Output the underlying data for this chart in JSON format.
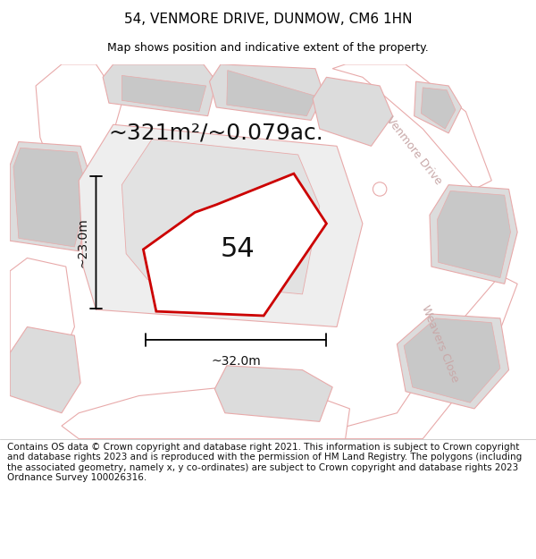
{
  "title": "54, VENMORE DRIVE, DUNMOW, CM6 1HN",
  "subtitle": "Map shows position and indicative extent of the property.",
  "area_label": "~321m²/~0.079ac.",
  "plot_number": "54",
  "dim_width": "~32.0m",
  "dim_height": "~23.0m",
  "footer": "Contains OS data © Crown copyright and database right 2021. This information is subject to Crown copyright and database rights 2023 and is reproduced with the permission of HM Land Registry. The polygons (including the associated geometry, namely x, y co-ordinates) are subject to Crown copyright and database rights 2023 Ordnance Survey 100026316.",
  "map_bg": "#ffffff",
  "plot_fill": "#ffffff",
  "plot_outline": "#cc0000",
  "road_fill": "#ffffff",
  "road_stroke": "#e8aaaa",
  "building_fill": "#dcdcdc",
  "building_stroke": "#e8aaaa",
  "title_fontsize": 11,
  "subtitle_fontsize": 9,
  "footer_fontsize": 7.5,
  "area_fontsize": 18,
  "plot_num_fontsize": 22,
  "dim_fontsize": 10,
  "road_label_color": "#c8a8a8",
  "road_label_fontsize": 9,
  "venmore_drive_label": "Venmore Drive",
  "weavers_close_label": "Weavers Close"
}
